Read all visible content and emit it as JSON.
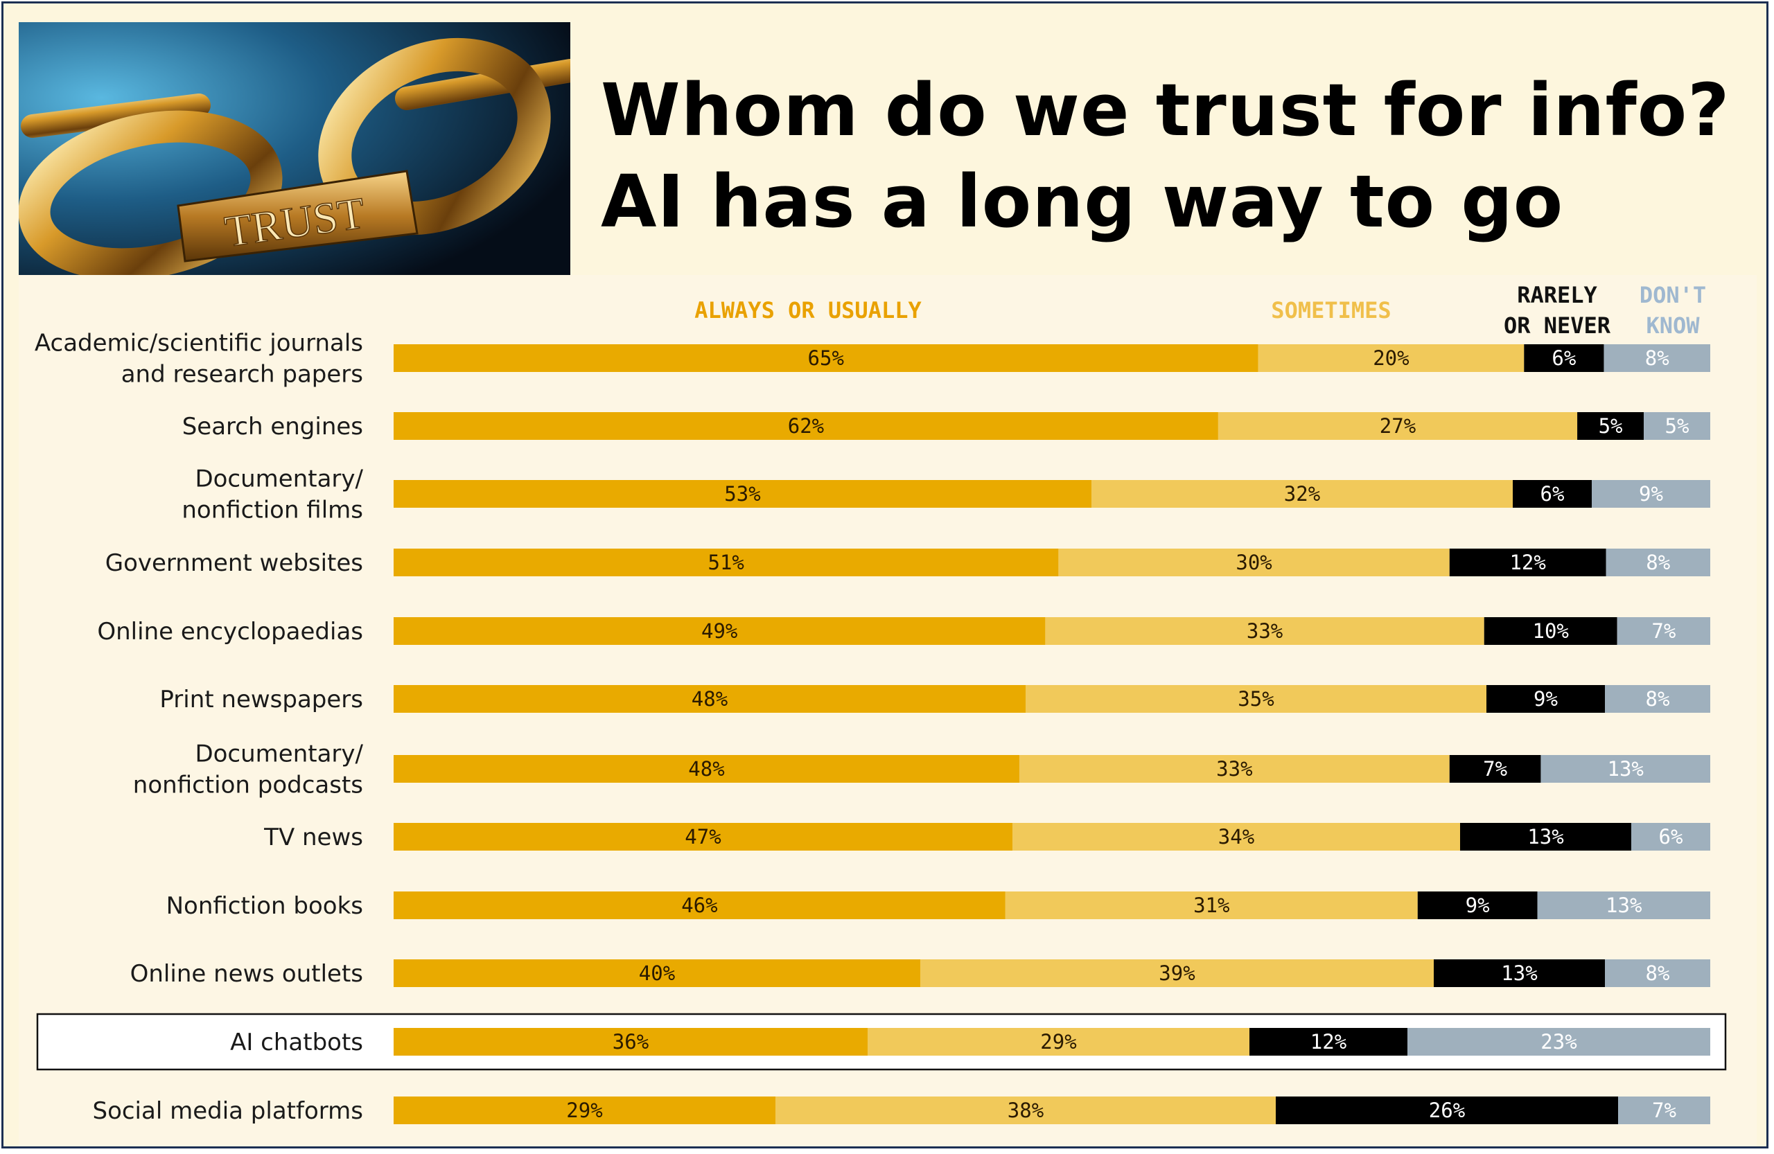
{
  "title": {
    "line1": "Whom do we trust for info?",
    "line2": "AI has a long way to go"
  },
  "hero_image": {
    "text": "TRUST"
  },
  "chart_data": {
    "type": "bar",
    "orientation": "horizontal",
    "stacked": true,
    "value_suffix": "%",
    "legend_placement": "top",
    "highlighted_category": "AI chatbots",
    "colors": {
      "always": "#e9aa00",
      "sometimes": "#f1c95a",
      "rarely": "#000000",
      "dont_know": "#9fb0bd"
    },
    "categories": [
      [
        "Academic/scientific journals",
        "and research papers"
      ],
      [
        "Search engines"
      ],
      [
        "Documentary/",
        "nonfiction films"
      ],
      [
        "Government websites"
      ],
      [
        "Online encyclopaedias"
      ],
      [
        "Print newspapers"
      ],
      [
        "Documentary/",
        "nonfiction podcasts"
      ],
      [
        "TV news"
      ],
      [
        "Nonfiction books"
      ],
      [
        "Online news outlets"
      ],
      [
        "AI chatbots"
      ],
      [
        "Social media platforms"
      ]
    ],
    "series": [
      {
        "name": [
          "ALWAYS OR USUALLY"
        ],
        "color": "#e9aa00",
        "label_color": "#2a1a00",
        "values": [
          65,
          62,
          53,
          51,
          49,
          48,
          48,
          47,
          46,
          40,
          36,
          29
        ]
      },
      {
        "name": [
          "SOMETIMES"
        ],
        "color": "#f1c95a",
        "label_color": "#2a1a00",
        "values": [
          20,
          27,
          32,
          30,
          33,
          35,
          33,
          34,
          31,
          39,
          29,
          38
        ]
      },
      {
        "name": [
          "RARELY",
          "OR NEVER"
        ],
        "color": "#000000",
        "label_color": "#ffffff",
        "values": [
          6,
          5,
          6,
          12,
          10,
          9,
          7,
          13,
          9,
          13,
          12,
          26
        ]
      },
      {
        "name": [
          "DON'T",
          "KNOW"
        ],
        "color": "#9fb0bd",
        "label_color": "#ffffff",
        "values": [
          8,
          5,
          9,
          8,
          7,
          8,
          13,
          6,
          13,
          8,
          23,
          7
        ]
      }
    ]
  }
}
